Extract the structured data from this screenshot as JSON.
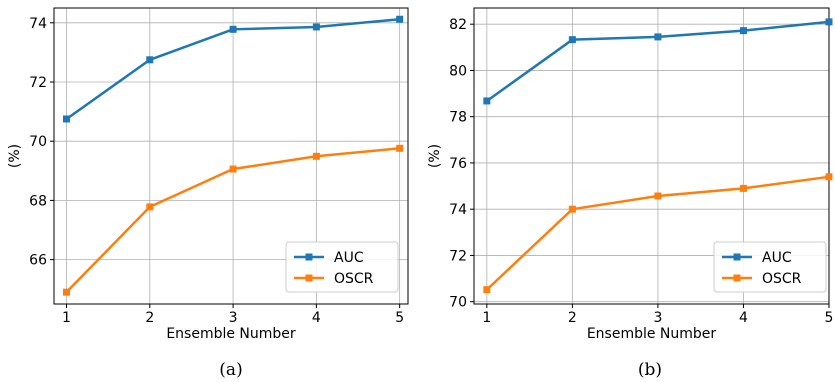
{
  "chart_data": [
    {
      "type": "line",
      "caption": "(a)",
      "xlabel": "Ensemble Number",
      "ylabel": "(%)",
      "x": [
        1,
        2,
        3,
        4,
        5
      ],
      "xticks": [
        "1",
        "2",
        "3",
        "4",
        "5"
      ],
      "yticks": [
        66,
        68,
        70,
        72,
        74
      ],
      "xlim": [
        0.85,
        5.1
      ],
      "ylim": [
        64.5,
        74.5
      ],
      "grid": true,
      "legend_placement": "lower-right",
      "series": [
        {
          "name": "AUC",
          "color": "#1f77b4",
          "marker": "square",
          "values": [
            70.75,
            72.75,
            73.78,
            73.86,
            74.12
          ]
        },
        {
          "name": "OSCR",
          "color": "#ff7f0e",
          "marker": "square",
          "values": [
            64.9,
            67.78,
            69.06,
            69.49,
            69.76
          ]
        }
      ]
    },
    {
      "type": "line",
      "caption": "(b)",
      "xlabel": "Ensemble Number",
      "ylabel": "(%)",
      "x": [
        1,
        2,
        3,
        4,
        5
      ],
      "xticks": [
        "1",
        "2",
        "3",
        "4",
        "5"
      ],
      "yticks": [
        70,
        72,
        74,
        76,
        78,
        80,
        82
      ],
      "xlim": [
        0.85,
        5.0
      ],
      "ylim": [
        69.9,
        82.7
      ],
      "grid": true,
      "legend_placement": "lower-right",
      "series": [
        {
          "name": "AUC",
          "color": "#1f77b4",
          "marker": "square",
          "values": [
            78.68,
            81.33,
            81.45,
            81.72,
            82.1
          ]
        },
        {
          "name": "OSCR",
          "color": "#ff7f0e",
          "marker": "square",
          "values": [
            70.52,
            74.0,
            74.57,
            74.9,
            75.4
          ]
        }
      ]
    }
  ]
}
